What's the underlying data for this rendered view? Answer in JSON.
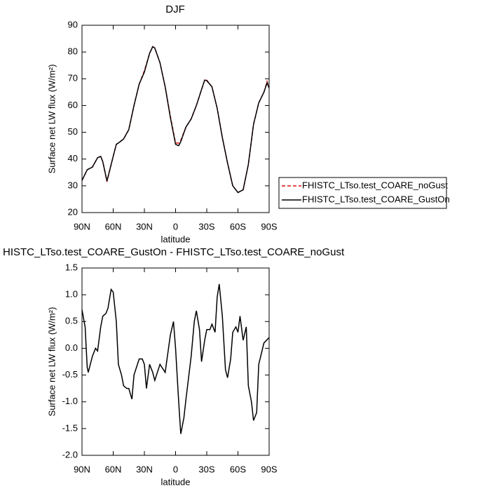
{
  "chart_data": [
    {
      "type": "line",
      "title": "DJF",
      "xlabel": "latitude",
      "ylabel": "Surface net LW flux (W/m²)",
      "x": [
        90,
        85,
        80,
        75,
        72,
        70,
        66,
        60,
        57,
        55,
        50,
        45,
        40,
        35,
        30,
        25,
        22,
        20,
        15,
        10,
        5,
        0,
        -3,
        -5,
        -10,
        -15,
        -20,
        -25,
        -28,
        -30,
        -35,
        -40,
        -45,
        -50,
        -55,
        -60,
        -65,
        -70,
        -75,
        -80,
        -85,
        -88,
        -90
      ],
      "series": [
        {
          "name": "FHISTC_LTso.test_COARE_noGust",
          "color": "#e01010",
          "dash": "dashed",
          "values": [
            32,
            36,
            37,
            40.5,
            41,
            39,
            31.5,
            41,
            45.5,
            46,
            47.5,
            51,
            60,
            68,
            73,
            79.5,
            82,
            81.5,
            76,
            67,
            56,
            46,
            46,
            47,
            52,
            55,
            60,
            66,
            69.5,
            69.5,
            67,
            59,
            48,
            38.5,
            30,
            27.5,
            28.5,
            38,
            53,
            61,
            65,
            69,
            66.5
          ]
        },
        {
          "name": "FHISTC_LTso.test_COARE_GustOn",
          "color": "#000000",
          "dash": "solid",
          "values": [
            32,
            36,
            37,
            40.5,
            41,
            39,
            31.8,
            41,
            45.5,
            46,
            47.5,
            51,
            60,
            68,
            72.5,
            79.5,
            82,
            81.5,
            76,
            67,
            55.5,
            45.5,
            45,
            46.5,
            52,
            55,
            60,
            66,
            69.5,
            69.3,
            67,
            59,
            48,
            38.5,
            30,
            27.5,
            28.5,
            38,
            53,
            61,
            65,
            68.5,
            66.5
          ]
        }
      ],
      "xlim": [
        90,
        -90
      ],
      "xticks": [
        {
          "value": 90,
          "label": "90N"
        },
        {
          "value": 60,
          "label": "60N"
        },
        {
          "value": 30,
          "label": "30N"
        },
        0,
        {
          "value": -30,
          "label": "30S"
        },
        {
          "value": -60,
          "label": "60S"
        },
        {
          "value": -90,
          "label": "90S"
        }
      ],
      "ylim": [
        20,
        90
      ],
      "yticks": [
        20,
        30,
        40,
        50,
        60,
        70,
        80,
        90
      ],
      "legend": "right"
    },
    {
      "type": "line",
      "title": "HISTC_LTso.test_COARE_GustOn - FHISTC_LTso.test_COARE_noGust",
      "xlabel": "latitude",
      "ylabel": "Surface net LW flux (W/m²)",
      "x": [
        90,
        87,
        85,
        84,
        80,
        77,
        75,
        72,
        70,
        67,
        65,
        62,
        60,
        57,
        55,
        52,
        50,
        47,
        45,
        42,
        40,
        35,
        32,
        30,
        28,
        25,
        22,
        20,
        15,
        10,
        5,
        2,
        0,
        -3,
        -5,
        -8,
        -10,
        -15,
        -18,
        -20,
        -23,
        -25,
        -28,
        -30,
        -33,
        -35,
        -38,
        -40,
        -42,
        -45,
        -48,
        -50,
        -53,
        -55,
        -58,
        -60,
        -62,
        -65,
        -68,
        -70,
        -73,
        -75,
        -78,
        -80,
        -85,
        -90
      ],
      "series": [
        {
          "name": null,
          "color": "#000000",
          "dash": "solid",
          "values": [
            0.72,
            0.4,
            -0.35,
            -0.45,
            -0.15,
            0.0,
            -0.05,
            0.4,
            0.6,
            0.65,
            0.75,
            1.1,
            1.05,
            0.5,
            -0.3,
            -0.5,
            -0.7,
            -0.75,
            -0.75,
            -0.95,
            -0.5,
            -0.2,
            -0.2,
            -0.3,
            -0.75,
            -0.3,
            -0.45,
            -0.6,
            -0.3,
            -0.45,
            0.25,
            0.5,
            0.0,
            -1.0,
            -1.6,
            -1.3,
            -0.95,
            -0.15,
            0.5,
            0.7,
            0.35,
            -0.25,
            0.15,
            0.35,
            0.35,
            0.45,
            0.3,
            0.95,
            1.2,
            0.6,
            -0.4,
            -0.55,
            -0.2,
            0.3,
            0.4,
            0.3,
            0.6,
            0.15,
            0.4,
            -0.7,
            -1.0,
            -1.35,
            -1.2,
            -0.3,
            0.1,
            0.2
          ]
        }
      ],
      "xlim": [
        90,
        -90
      ],
      "xticks": [
        {
          "value": 90,
          "label": "90N"
        },
        {
          "value": 60,
          "label": "60N"
        },
        {
          "value": 30,
          "label": "30N"
        },
        0,
        {
          "value": -30,
          "label": "30S"
        },
        {
          "value": -60,
          "label": "60S"
        },
        {
          "value": -90,
          "label": "90S"
        }
      ],
      "ylim": [
        -2,
        1.5
      ],
      "yticks": [
        {
          "value": -2,
          "label": "-2.0"
        },
        {
          "value": -1.5,
          "label": "-1.5"
        },
        {
          "value": -1,
          "label": "-1.0"
        },
        {
          "value": -0.5,
          "label": "-0.5"
        },
        {
          "value": 0,
          "label": "0.0"
        },
        {
          "value": 0.5,
          "label": "0.5"
        },
        {
          "value": 1,
          "label": "1.0"
        },
        {
          "value": 1.5,
          "label": "1.5"
        }
      ]
    }
  ]
}
